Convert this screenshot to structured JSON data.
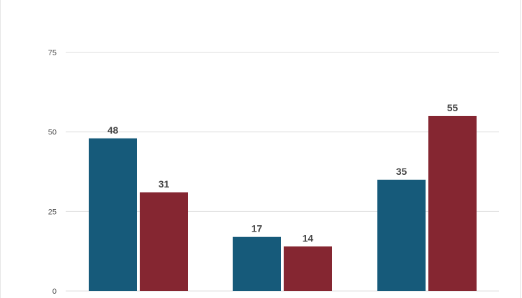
{
  "chart_data": {
    "type": "bar",
    "title": "",
    "xlabel": "",
    "ylabel": "",
    "ylim": [
      0,
      75
    ],
    "yticks": [
      0,
      25,
      50,
      75
    ],
    "grid": true,
    "legend": "none",
    "categories": [
      "",
      "",
      ""
    ],
    "series": [
      {
        "values": [
          48,
          17,
          35
        ],
        "color": "#165a7a"
      },
      {
        "values": [
          31,
          14,
          55
        ],
        "color": "#852631"
      }
    ]
  }
}
